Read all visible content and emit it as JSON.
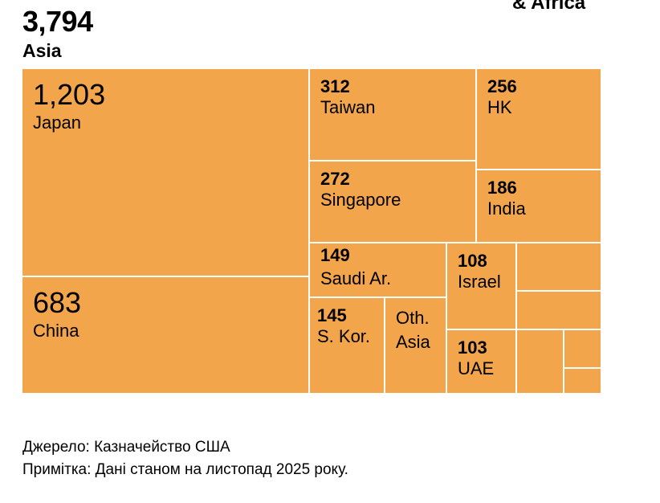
{
  "chart_data": {
    "type": "treemap",
    "group_label": "Asia",
    "group_total": "3,794",
    "adjacent_group_label": "& Africa",
    "color": "#F2A54A",
    "cells": [
      {
        "label": "Japan",
        "value": "1,203"
      },
      {
        "label": "China",
        "value": "683"
      },
      {
        "label": "Taiwan",
        "value": "312"
      },
      {
        "label": "HK",
        "value": "256"
      },
      {
        "label": "Singapore",
        "value": "272"
      },
      {
        "label": "India",
        "value": "186"
      },
      {
        "label": "Saudi Ar.",
        "value": "149"
      },
      {
        "label": "S. Kor.",
        "value": "145"
      },
      {
        "label": "Oth. Asia",
        "value": ""
      },
      {
        "label": "Israel",
        "value": "108"
      },
      {
        "label": "UAE",
        "value": "103"
      }
    ],
    "unlabeled_cells": 5
  },
  "footer": {
    "source": "Джерело: Казначейство США",
    "note": "Примітка: Дані станом на листопад 2025 року."
  }
}
